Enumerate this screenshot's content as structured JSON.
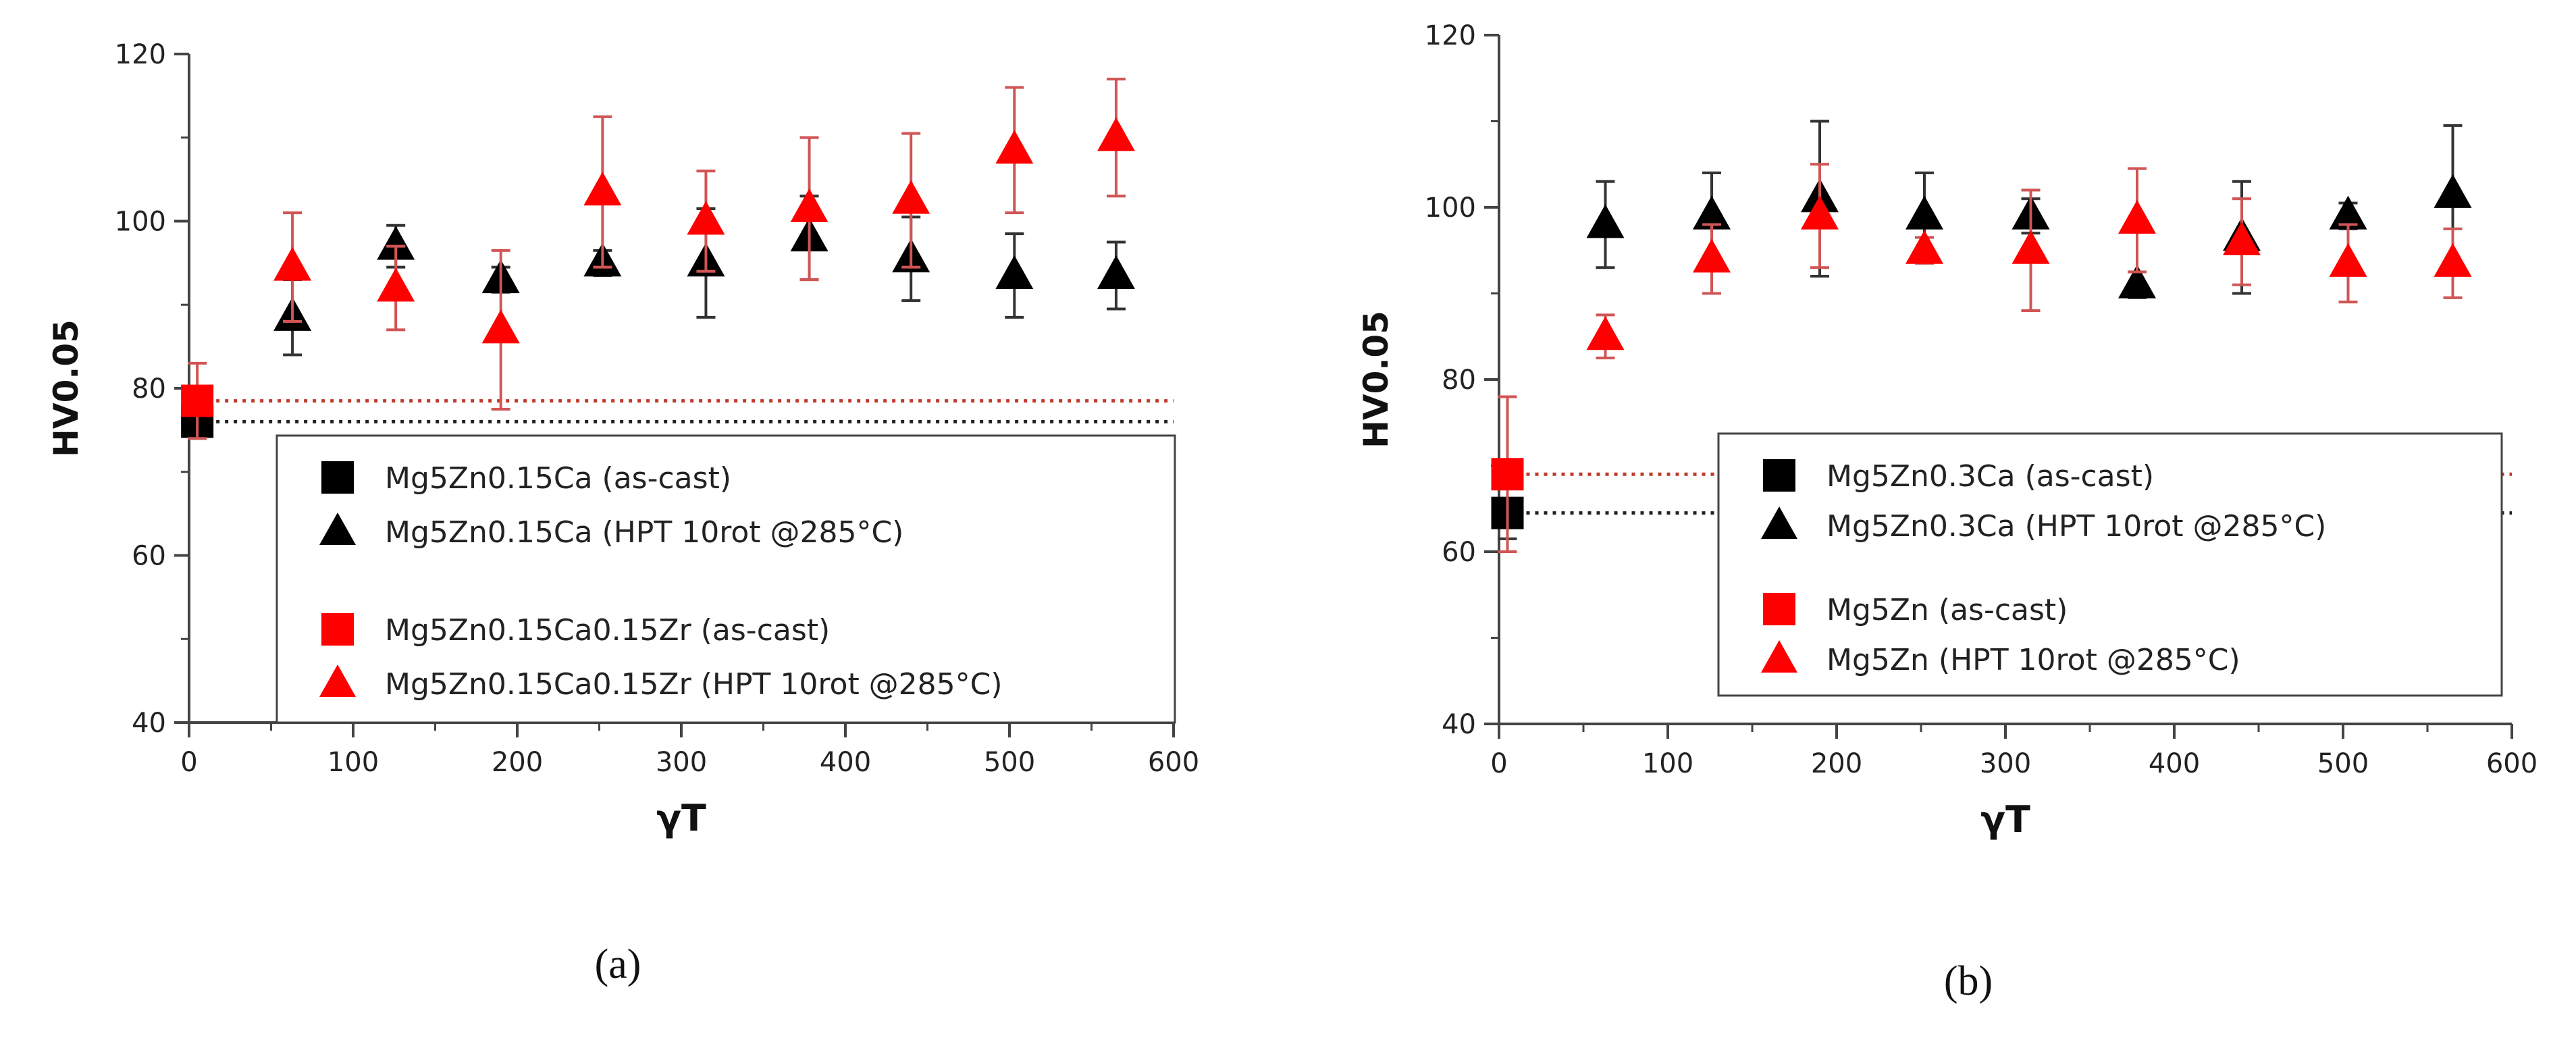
{
  "chart_data": [
    {
      "type": "scatter",
      "panel_label": "(a)",
      "xlabel": "γT",
      "ylabel": "HV0.05",
      "xlim": [
        0,
        600
      ],
      "ylim": [
        40,
        120
      ],
      "xticks": [
        "0",
        "100",
        "200",
        "300",
        "400",
        "500",
        "600"
      ],
      "yticks": [
        "40",
        "60",
        "80",
        "100",
        "120"
      ],
      "reference_lines": [
        {
          "series": "Mg5Zn0.15Ca (as-cast)",
          "y": 76,
          "color": "#222222"
        },
        {
          "series": "Mg5Zn0.15Ca0.15Zr (as-cast)",
          "y": 78.5,
          "color": "#c0392b"
        }
      ],
      "series": [
        {
          "name": "Mg5Zn0.15Ca (as-cast)",
          "marker": "square",
          "color": "#000000",
          "x": [
            5
          ],
          "y": [
            76
          ],
          "err": [
            2
          ]
        },
        {
          "name": "Mg5Zn0.15Ca (HPT 10rot @285°C)",
          "marker": "triangle",
          "color": "#000000",
          "x": [
            63,
            126,
            190,
            252,
            315,
            378,
            440,
            503,
            565
          ],
          "y": [
            88.5,
            97,
            93,
            95,
            95,
            98,
            95.5,
            93.5,
            93.5
          ],
          "err": [
            4.5,
            2.5,
            1.5,
            1.5,
            6.5,
            5,
            5,
            5,
            4
          ]
        },
        {
          "name": "Mg5Zn0.15Ca0.15Zr (as-cast)",
          "marker": "square",
          "color": "#ff0000",
          "x": [
            5
          ],
          "y": [
            78.5
          ],
          "err": [
            4.5
          ]
        },
        {
          "name": "Mg5Zn0.15Ca0.15Zr (HPT 10rot @285°C)",
          "marker": "triangle",
          "color": "#ff0000",
          "x": [
            63,
            126,
            190,
            252,
            315,
            378,
            440,
            503,
            565
          ],
          "y": [
            94.5,
            92,
            87,
            103.5,
            100,
            101.5,
            102.5,
            108.5,
            110
          ],
          "err": [
            6.5,
            5,
            9.5,
            9,
            6,
            8.5,
            8,
            7.5,
            7
          ]
        }
      ],
      "legend": {
        "groups": [
          [
            "Mg5Zn0.15Ca (as-cast)",
            "Mg5Zn0.15Ca (HPT 10rot @285°C)"
          ],
          [
            "Mg5Zn0.15Ca0.15Zr (as-cast)",
            "Mg5Zn0.15Ca0.15Zr (HPT 10rot @285°C)"
          ]
        ]
      }
    },
    {
      "type": "scatter",
      "panel_label": "(b)",
      "xlabel": "γT",
      "ylabel": "HV0.05",
      "xlim": [
        0,
        600
      ],
      "ylim": [
        40,
        120
      ],
      "xticks": [
        "0",
        "100",
        "200",
        "300",
        "400",
        "500",
        "600"
      ],
      "yticks": [
        "40",
        "60",
        "80",
        "100",
        "120"
      ],
      "reference_lines": [
        {
          "series": "Mg5Zn0.3Ca (as-cast)",
          "y": 64.5,
          "color": "#222222"
        },
        {
          "series": "Mg5Zn (as-cast)",
          "y": 69,
          "color": "#c0392b"
        }
      ],
      "series": [
        {
          "name": "Mg5Zn0.3Ca (as-cast)",
          "marker": "square",
          "color": "#000000",
          "x": [
            5
          ],
          "y": [
            64.5
          ],
          "err": [
            3
          ]
        },
        {
          "name": "Mg5Zn0.3Ca (HPT 10rot @285°C)",
          "marker": "triangle",
          "color": "#000000",
          "x": [
            63,
            126,
            190,
            252,
            315,
            378,
            440,
            503,
            565
          ],
          "y": [
            98,
            99,
            101,
            99,
            99,
            91,
            96.5,
            99,
            101.5
          ],
          "err": [
            5,
            5,
            9,
            5,
            2,
            1.5,
            6.5,
            1.5,
            8
          ]
        },
        {
          "name": "Mg5Zn (as-cast)",
          "marker": "square",
          "color": "#ff0000",
          "x": [
            5
          ],
          "y": [
            69
          ],
          "err": [
            9
          ]
        },
        {
          "name": "Mg5Zn (HPT 10rot @285°C)",
          "marker": "triangle",
          "color": "#ff0000",
          "x": [
            63,
            126,
            190,
            252,
            315,
            378,
            440,
            503,
            565
          ],
          "y": [
            85,
            94,
            99,
            95,
            95,
            98.5,
            96,
            93.5,
            93.5
          ],
          "err": [
            2.5,
            4,
            6,
            1.5,
            7,
            6,
            5,
            4.5,
            4
          ]
        }
      ],
      "legend": {
        "groups": [
          [
            "Mg5Zn0.3Ca (as-cast)",
            "Mg5Zn0.3Ca (HPT 10rot @285°C)"
          ],
          [
            "Mg5Zn (as-cast)",
            "Mg5Zn (HPT 10rot @285°C)"
          ]
        ]
      }
    }
  ]
}
